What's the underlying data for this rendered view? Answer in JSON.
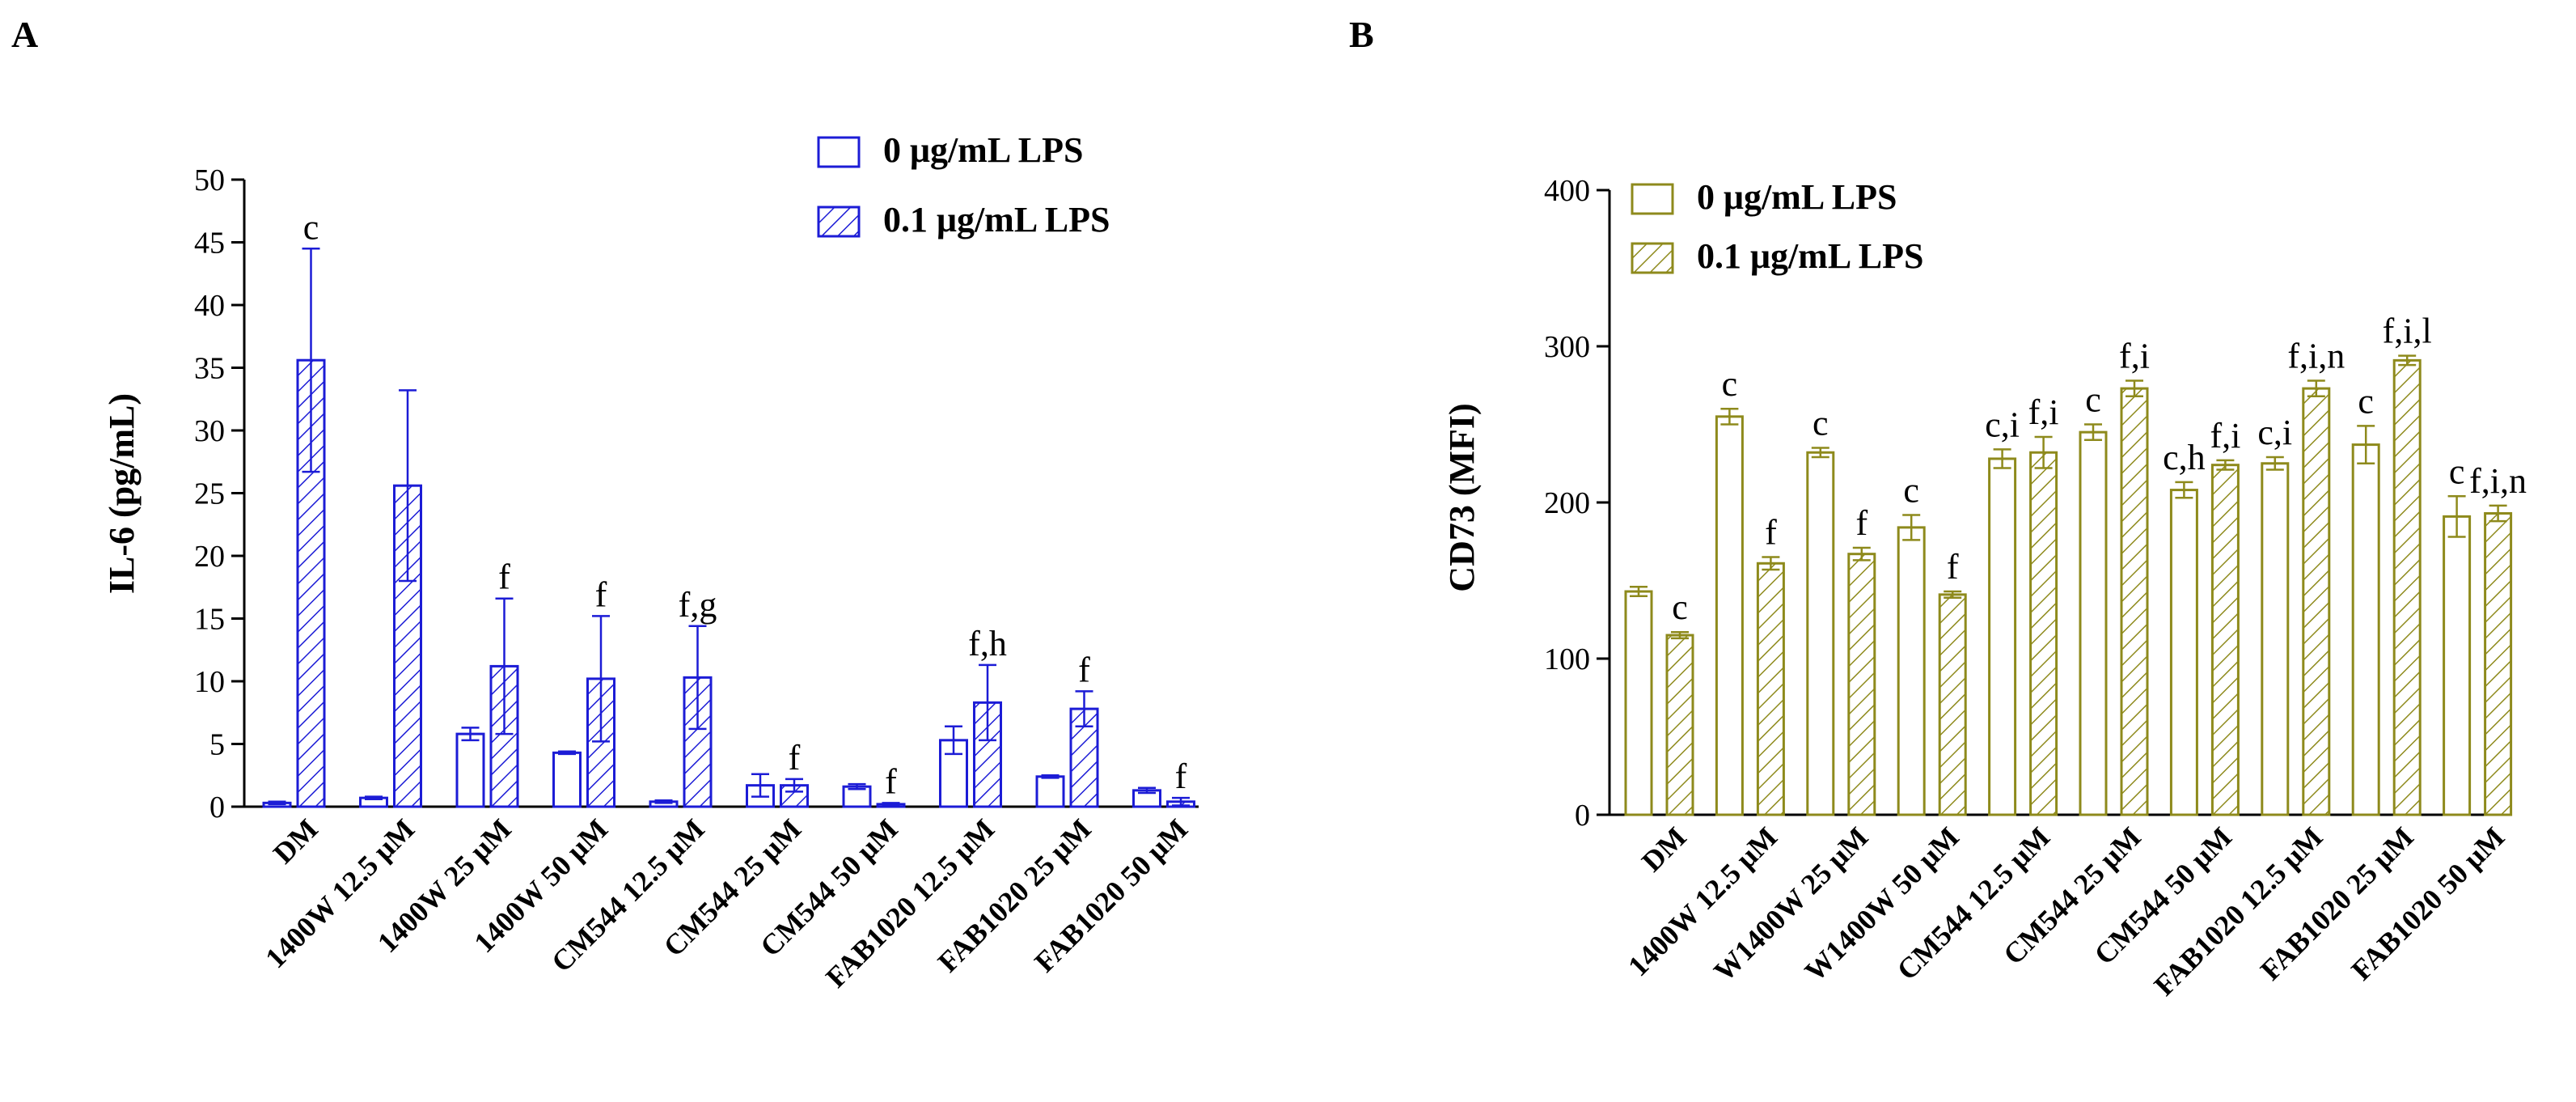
{
  "figure": {
    "panels": [
      "A",
      "B"
    ]
  },
  "chart_data": [
    {
      "type": "bar",
      "panel": "A",
      "color": "#1c1cd6",
      "title": "",
      "xlabel": "",
      "ylabel": "IL-6 (pg/mL)",
      "ylim": [
        0,
        50
      ],
      "yticks": [
        0,
        5,
        10,
        15,
        20,
        25,
        30,
        35,
        40,
        45,
        50
      ],
      "categories": [
        "DM",
        "1400W 12.5 μM",
        "1400W 25 μM",
        "1400W 50 μM",
        "CM544 12.5 μM",
        "CM544 25 μM",
        "CM544 50 μM",
        "FAB1020 12.5 μM",
        "FAB1020 25 μM",
        "FAB1020 50 μM"
      ],
      "legend": [
        "0 μg/mL LPS",
        "0.1 μg/mL LPS"
      ],
      "legend_position": "top-right",
      "series": [
        {
          "name": "0 μg/mL LPS",
          "pattern": "open",
          "values": [
            0.3,
            0.7,
            5.8,
            4.3,
            0.4,
            1.7,
            1.6,
            5.3,
            2.4,
            1.3
          ],
          "errors": [
            0.1,
            0.1,
            0.5,
            0.1,
            0.1,
            0.9,
            0.2,
            1.1,
            0.1,
            0.2
          ],
          "annotations": [
            "",
            "",
            "",
            "",
            "",
            "",
            "",
            "",
            "",
            ""
          ]
        },
        {
          "name": "0.1 μg/mL LPS",
          "pattern": "hatched",
          "values": [
            35.6,
            25.6,
            11.2,
            10.2,
            10.3,
            1.7,
            0.2,
            8.3,
            7.8,
            0.4
          ],
          "errors": [
            8.9,
            7.6,
            5.4,
            5.0,
            4.1,
            0.5,
            0.1,
            3.0,
            1.4,
            0.3
          ],
          "annotations": [
            "c",
            "",
            "f",
            "f",
            "f,g",
            "f",
            "f",
            "f,h",
            "f",
            ""
          ]
        }
      ],
      "extra_annotations": [
        {
          "text": "f",
          "category": 9
        }
      ]
    },
    {
      "type": "bar",
      "panel": "B",
      "color": "#8e8a1c",
      "title": "",
      "xlabel": "",
      "ylabel": "CD73 (MFI)",
      "ylim": [
        0,
        400
      ],
      "yticks": [
        0,
        100,
        200,
        300,
        400
      ],
      "categories": [
        "DM",
        "1400W 12.5 μM",
        "W1400W 25 μM",
        "W1400W 50 μM",
        "CM544 12.5 μM",
        "CM544 25 μM",
        "CM544 50 μM",
        "FAB1020 12.5 μM",
        "FAB1020 25 μM",
        "FAB1020 50 μM"
      ],
      "legend": [
        "0 μg/mL LPS",
        "0.1 μg/mL LPS"
      ],
      "legend_position": "top-left",
      "series": [
        {
          "name": "0 μg/mL LPS",
          "pattern": "open",
          "values": [
            143,
            255,
            232,
            184,
            228,
            245,
            208,
            225,
            237,
            191
          ],
          "errors": [
            3,
            5,
            3,
            8,
            6,
            5,
            5,
            4,
            12,
            13
          ],
          "annotations": [
            "",
            "c",
            "c",
            "c",
            "c,i",
            "c",
            "c,h",
            "c,i",
            "c",
            "c"
          ]
        },
        {
          "name": "0.1 μg/mL LPS",
          "pattern": "hatched",
          "values": [
            115,
            161,
            167,
            141,
            232,
            273,
            224,
            273,
            291,
            193
          ],
          "errors": [
            2,
            4,
            4,
            2,
            10,
            5,
            3,
            5,
            3,
            5
          ],
          "annotations": [
            "c",
            "f",
            "f",
            "f",
            "f,i",
            "f,i",
            "f,i",
            "f,i,n",
            "f,i,l",
            "f,i,n"
          ]
        }
      ]
    }
  ]
}
